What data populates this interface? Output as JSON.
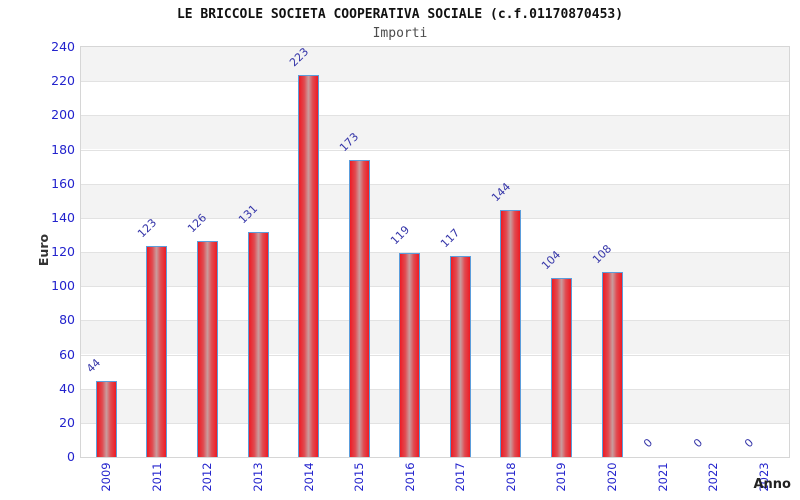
{
  "chart_data": {
    "type": "bar",
    "title": "LE BRICCOLE SOCIETA COOPERATIVA SOCIALE (c.f.01170870453)",
    "subtitle": "Importi",
    "xlabel": "Anno",
    "ylabel": "Euro",
    "categories": [
      "2009",
      "2011",
      "2012",
      "2013",
      "2014",
      "2015",
      "2016",
      "2017",
      "2018",
      "2019",
      "2020",
      "2021",
      "2022",
      "2023"
    ],
    "values": [
      44,
      123,
      126,
      131,
      223,
      173,
      119,
      117,
      144,
      104,
      108,
      0,
      0,
      0
    ],
    "ylim": [
      0,
      240
    ],
    "ytick_step": 20,
    "grid": true,
    "legend_position": "none",
    "band_fill": "alternating horizontal bands every 20 units, white and light gray",
    "colors": {
      "bar_red": "#ee1b24",
      "bar_center_highlight": "#c99d9f",
      "bar_border": "#5b9ddb",
      "axis_tick_labels": "#2323cd",
      "bar_value_labels": "#3434a8",
      "band_gray": "#f3f3f3",
      "gridline": "#e2e2e2",
      "plot_border": "#d6d6d6",
      "title": "#111111",
      "subtitle": "#4d4d4d",
      "axis_titles": "#333333"
    }
  }
}
